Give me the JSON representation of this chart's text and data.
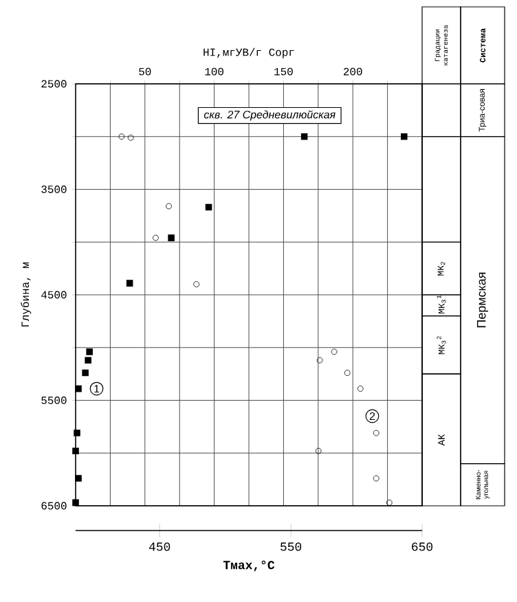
{
  "chart_data": {
    "type": "scatter",
    "xlabel": "Тмах,°С",
    "x2label": "HI,мгУВ/г Сорг",
    "ylabel": "Глубина, м",
    "xlim": [
      386,
      650
    ],
    "xticks": [
      450,
      550,
      650
    ],
    "x2lim": [
      0,
      250
    ],
    "x2ticks": [
      {
        "value": 25,
        "label": null
      },
      50,
      {
        "value": 75,
        "label": null
      },
      100,
      {
        "value": 125,
        "label": null
      },
      150,
      {
        "value": 175,
        "label": null
      },
      200,
      {
        "value": 225,
        "label": null
      },
      {
        "value": 250,
        "label": null
      }
    ],
    "ylim": [
      6500,
      2500
    ],
    "yticks": [
      2500,
      {
        "value": 3000,
        "label": null
      },
      3500,
      {
        "value": 4000,
        "label": null
      },
      4500,
      {
        "value": 5000,
        "label": null
      },
      5500,
      {
        "value": 6000,
        "label": null
      },
      6500
    ],
    "grid": true,
    "series": [
      {
        "type": "scatter",
        "axis": "x2",
        "marker": "square",
        "color": "#000000",
        "x": [
          165,
          237,
          96,
          69,
          39,
          10,
          9,
          7,
          2,
          1,
          0,
          2,
          0
        ],
        "values": [
          3000,
          3000,
          3670,
          3960,
          4390,
          5040,
          5120,
          5240,
          5390,
          5810,
          5980,
          6240,
          6470
        ]
      },
      {
        "type": "scatter",
        "marker": "circle",
        "color": "#000000",
        "x": [
          421,
          428,
          457,
          447,
          478,
          583,
          572,
          593,
          603,
          615,
          571,
          615,
          625
        ],
        "values": [
          3000,
          3010,
          3660,
          3960,
          4400,
          5040,
          5120,
          5240,
          5390,
          5810,
          5980,
          6240,
          6470
        ]
      }
    ],
    "annotations": [
      "скв. 27 Средневилюйская",
      {
        "text": "1",
        "x": 402,
        "y": 5390
      },
      {
        "text": "2",
        "x": 612,
        "y": 5650
      },
      "Градации катагенеза",
      "Система",
      "МК$_{2}$",
      "МК$_{3}$$^{1}$",
      "МК$_{3}$$^{2}$",
      "АК",
      "Триа-совая",
      "Пермская",
      "Каменно-угольная"
    ]
  }
}
